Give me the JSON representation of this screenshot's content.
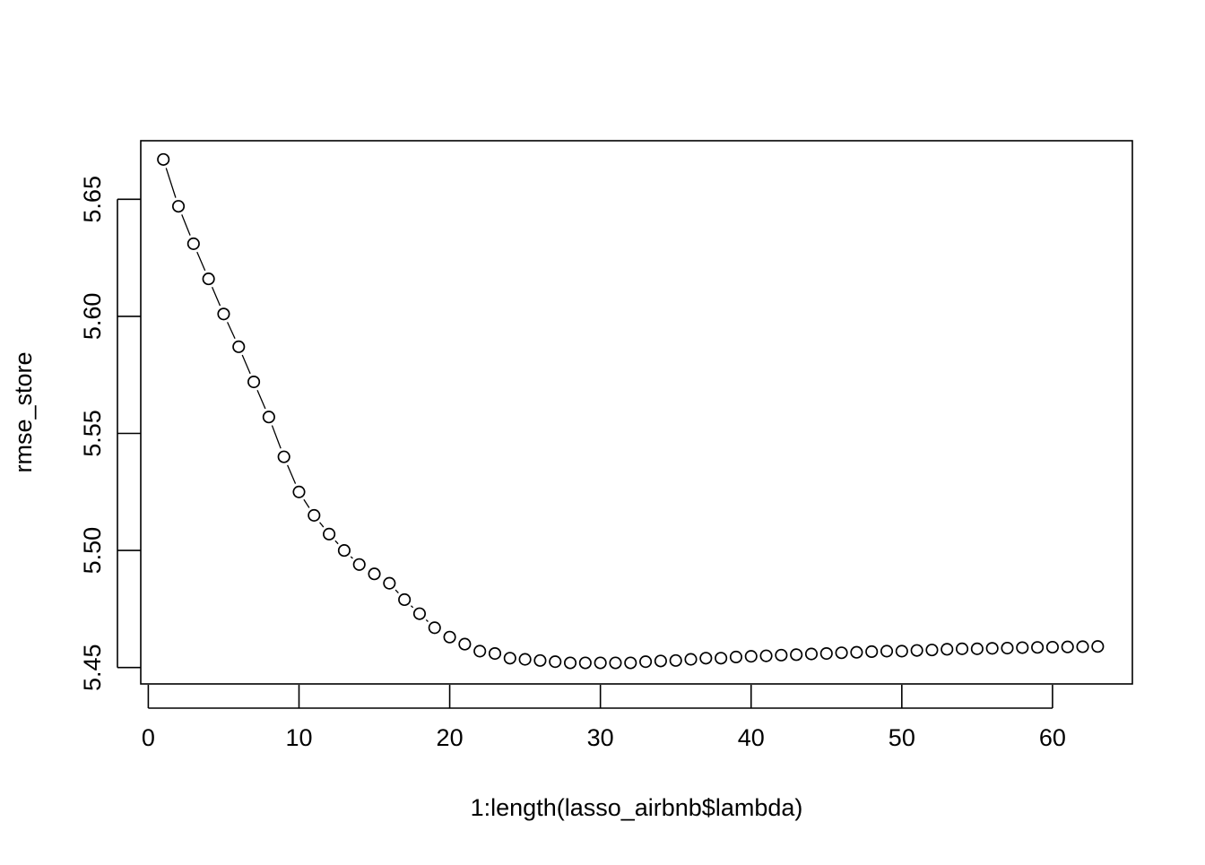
{
  "chart_data": {
    "type": "scatter",
    "xlabel": "1:length(lasso_airbnb$lambda)",
    "ylabel": "rmse_store",
    "xlim": [
      -0.5,
      65.3
    ],
    "ylim": [
      5.443,
      5.675
    ],
    "x_ticks": [
      0,
      10,
      20,
      30,
      40,
      50,
      60
    ],
    "y_ticks": [
      5.45,
      5.5,
      5.55,
      5.6,
      5.65
    ],
    "x_tick_labels": [
      "0",
      "10",
      "20",
      "30",
      "40",
      "50",
      "60"
    ],
    "y_tick_labels": [
      "5.45",
      "5.50",
      "5.55",
      "5.60",
      "5.65"
    ],
    "grid": false,
    "marker": "open-circle",
    "line_style": "dashed-connector",
    "x": [
      1,
      2,
      3,
      4,
      5,
      6,
      7,
      8,
      9,
      10,
      11,
      12,
      13,
      14,
      15,
      16,
      17,
      18,
      19,
      20,
      21,
      22,
      23,
      24,
      25,
      26,
      27,
      28,
      29,
      30,
      31,
      32,
      33,
      34,
      35,
      36,
      37,
      38,
      39,
      40,
      41,
      42,
      43,
      44,
      45,
      46,
      47,
      48,
      49,
      50,
      51,
      52,
      53,
      54,
      55,
      56,
      57,
      58,
      59,
      60,
      61,
      62,
      63
    ],
    "y": [
      5.667,
      5.647,
      5.631,
      5.616,
      5.601,
      5.587,
      5.572,
      5.557,
      5.54,
      5.525,
      5.515,
      5.507,
      5.5,
      5.494,
      5.49,
      5.486,
      5.479,
      5.473,
      5.467,
      5.463,
      5.46,
      5.457,
      5.456,
      5.454,
      5.4535,
      5.453,
      5.4525,
      5.452,
      5.452,
      5.452,
      5.452,
      5.452,
      5.4525,
      5.4528,
      5.453,
      5.4535,
      5.454,
      5.454,
      5.4545,
      5.4548,
      5.455,
      5.4553,
      5.4555,
      5.4558,
      5.456,
      5.4563,
      5.4565,
      5.4568,
      5.457,
      5.457,
      5.4573,
      5.4575,
      5.4578,
      5.458,
      5.458,
      5.4582,
      5.4583,
      5.4585,
      5.4586,
      5.4587,
      5.4588,
      5.4589,
      5.459
    ]
  }
}
